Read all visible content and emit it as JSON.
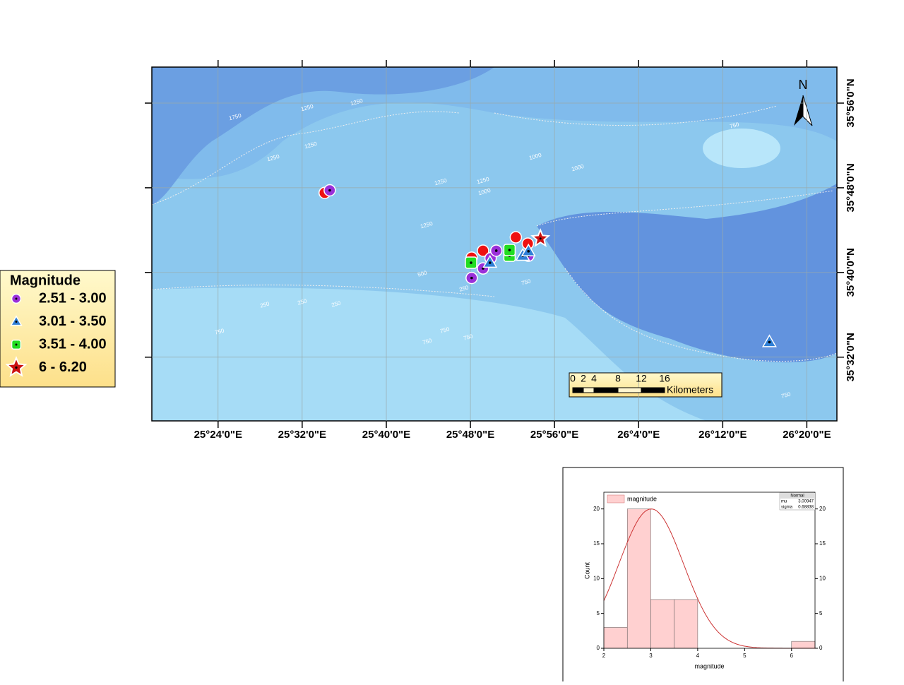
{
  "chart_data": [
    {
      "type": "map",
      "xlim": [
        25.295,
        26.381
      ],
      "ylim": [
        35.433,
        35.99
      ],
      "xticks": [
        {
          "value": 25.4,
          "label": "25°24'0\"E"
        },
        {
          "value": 25.5333,
          "label": "25°32'0\"E"
        },
        {
          "value": 25.6667,
          "label": "25°40'0\"E"
        },
        {
          "value": 25.8,
          "label": "25°48'0\"E"
        },
        {
          "value": 25.9333,
          "label": "25°56'0\"E"
        },
        {
          "value": 26.0667,
          "label": "26°4'0\"E"
        },
        {
          "value": 26.2,
          "label": "26°12'0\"E"
        },
        {
          "value": 26.3333,
          "label": "26°20'0\"E"
        }
      ],
      "yticks": [
        {
          "value": 35.9333,
          "label": "35°56'0\"N"
        },
        {
          "value": 35.8,
          "label": "35°48'0\"N"
        },
        {
          "value": 35.6667,
          "label": "35°40'0\"N"
        },
        {
          "value": 35.5333,
          "label": "35°32'0\"N"
        }
      ],
      "grid": true,
      "north": "N",
      "scale_bar": {
        "ticks": [
          "0",
          "2",
          "4",
          "8",
          "12",
          "16"
        ],
        "unit": "Kilometers"
      },
      "legend_title": "Magnitude",
      "contour_labels": [
        "1750",
        "1250",
        "1250",
        "1250",
        "1250",
        "1250",
        "1250",
        "1000",
        "1000",
        "1250",
        "1000",
        "500",
        "250",
        "250",
        "250",
        "750",
        "250",
        "750",
        "750",
        "750",
        "750",
        "750",
        "750"
      ],
      "series": [
        {
          "name": "2.51 - 3.00",
          "marker": "circle",
          "color": "#9b30d9",
          "x": [
            25.577,
            25.802,
            25.82,
            25.832,
            25.841,
            25.892
          ],
          "y": [
            35.796,
            35.658,
            35.673,
            35.689,
            35.701,
            35.693
          ]
        },
        {
          "name": "3.01 - 3.50",
          "marker": "triangle",
          "color": "#2f7fd6",
          "x": [
            25.831,
            25.883,
            25.892,
            26.274
          ],
          "y": [
            35.682,
            35.693,
            35.7,
            35.557
          ]
        },
        {
          "name": "3.51 - 4.00",
          "marker": "square",
          "color": "#22dd22",
          "x": [
            25.801,
            25.862,
            25.862
          ],
          "y": [
            35.682,
            35.693,
            35.702
          ]
        },
        {
          "name": "6 - 6.20",
          "marker": "star",
          "color": "#cc1111",
          "x": [
            25.911
          ],
          "y": [
            35.72
          ]
        },
        {
          "marker": "dot",
          "color": "#ee1111",
          "x": [
            25.569,
            25.802,
            25.82,
            25.872,
            25.891
          ],
          "y": [
            35.792,
            35.69,
            35.701,
            35.722,
            35.712
          ]
        }
      ]
    },
    {
      "type": "histogram",
      "bins": [
        2,
        2.5,
        3,
        3.5,
        4,
        4.5,
        5,
        5.5,
        6,
        6.5
      ],
      "counts": [
        3,
        20,
        7,
        7,
        0,
        0,
        0,
        0,
        1
      ],
      "color": "#ffd0d0",
      "legend": "magnitude",
      "xlabel": "magnitude",
      "ylabel": "Count",
      "xlim": [
        2,
        6.5
      ],
      "ylim": [
        0,
        22.4
      ],
      "xticks": [
        2,
        3,
        4,
        5,
        6
      ],
      "yticks": [
        0,
        5,
        10,
        15,
        20
      ],
      "fit": {
        "title": "Normal",
        "color": "#cc3333",
        "params": [
          {
            "name": "mu",
            "value": 3.00947
          },
          {
            "name": "sigma",
            "value": 0.68838
          }
        ]
      }
    }
  ]
}
